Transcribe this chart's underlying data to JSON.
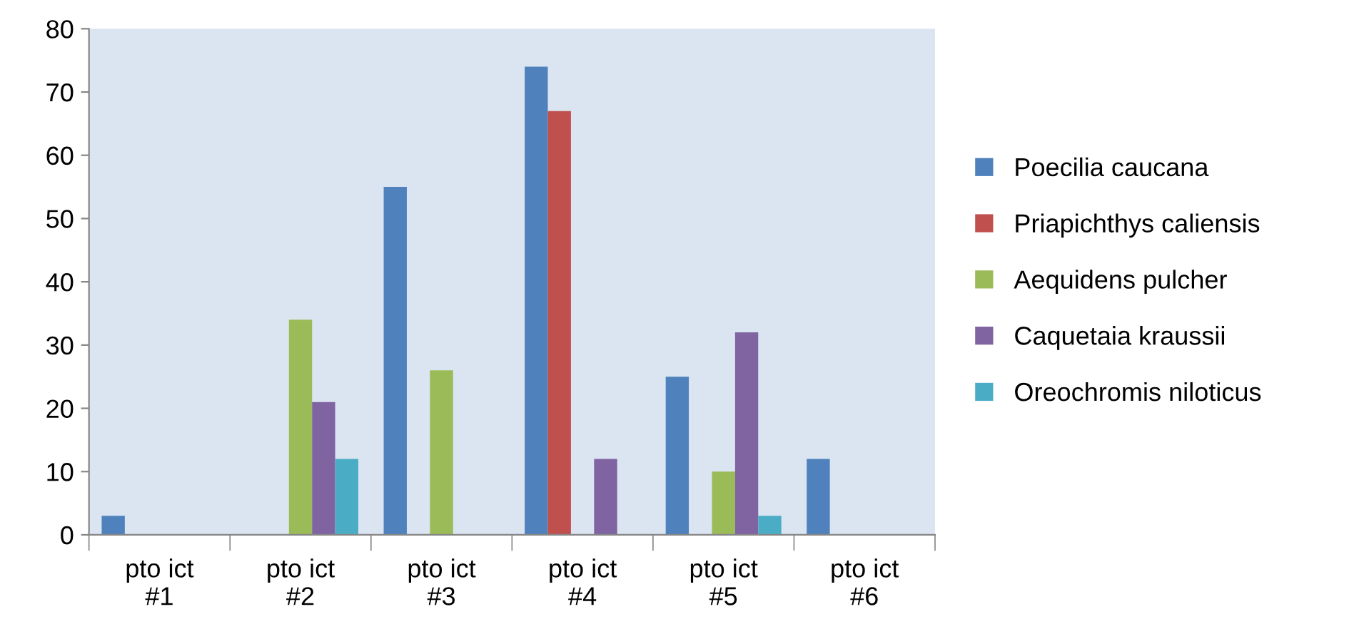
{
  "chart_data": {
    "type": "bar",
    "categories": [
      "pto ict\n#1",
      "pto ict\n#2",
      "pto ict\n#3",
      "pto ict\n#4",
      "pto ict\n#5",
      "pto ict\n#6"
    ],
    "series": [
      {
        "name": "Poecilia caucana",
        "color": "#4f81bd",
        "values": [
          3,
          0,
          55,
          74,
          25,
          12
        ]
      },
      {
        "name": "Priapichthys caliensis",
        "color": "#c0504d",
        "values": [
          0,
          0,
          0,
          67,
          0,
          0
        ]
      },
      {
        "name": "Aequidens pulcher",
        "color": "#9bbb59",
        "values": [
          0,
          34,
          26,
          0,
          10,
          0
        ]
      },
      {
        "name": "Caquetaia kraussii",
        "color": "#8064a2",
        "values": [
          0,
          21,
          0,
          12,
          32,
          0
        ]
      },
      {
        "name": "Oreochromis niloticus",
        "color": "#4bacc6",
        "values": [
          0,
          12,
          0,
          0,
          3,
          0
        ]
      }
    ],
    "ylim": [
      0,
      80
    ],
    "yticks": [
      0,
      10,
      20,
      30,
      40,
      50,
      60,
      70,
      80
    ],
    "grid": false,
    "legend": "right"
  }
}
